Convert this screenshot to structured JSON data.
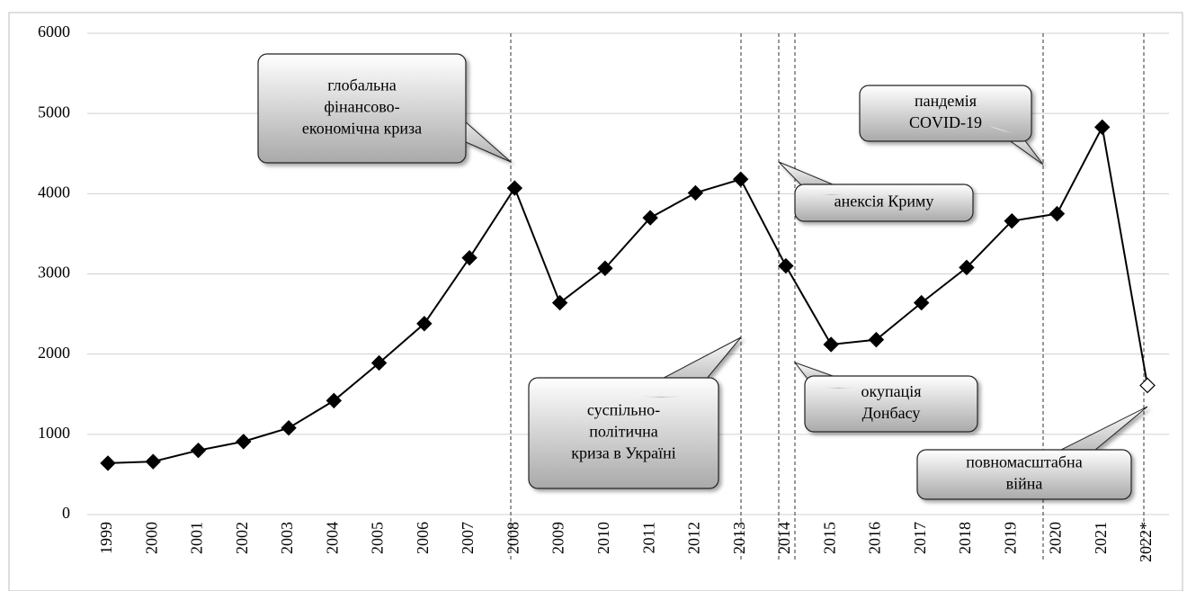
{
  "chart_data": {
    "type": "line",
    "categories": [
      "1999",
      "2000",
      "2001",
      "2002",
      "2003",
      "2004",
      "2005",
      "2006",
      "2007",
      "2008",
      "2009",
      "2010",
      "2011",
      "2012",
      "2013",
      "2014",
      "2015",
      "2016",
      "2017",
      "2018",
      "2019",
      "2020",
      "2021",
      "2022*"
    ],
    "values": [
      640,
      660,
      800,
      910,
      1080,
      1420,
      1890,
      2380,
      3200,
      4070,
      2640,
      3070,
      3700,
      4010,
      4180,
      3100,
      2120,
      2180,
      2640,
      3080,
      3660,
      3750,
      4830,
      1610
    ],
    "color": "#000000",
    "open_markers": [
      "2022*"
    ],
    "ylim": [
      0,
      6000
    ],
    "yticks": [
      0,
      1000,
      2000,
      3000,
      4000,
      5000,
      6000
    ],
    "grid": true,
    "annotations": [
      {
        "lines": [
          "глобальна",
          "фінансово-",
          "економічна криза"
        ]
      },
      {
        "lines": [
          "пандемія",
          "COVID-19"
        ]
      },
      {
        "lines": [
          "анексія Криму"
        ]
      },
      {
        "lines": [
          "суспільно-",
          "політична",
          "криза в Україні"
        ]
      },
      {
        "lines": [
          "окупація",
          "Донбасу"
        ]
      },
      {
        "lines": [
          "повномасштабна",
          "війна"
        ]
      }
    ]
  }
}
